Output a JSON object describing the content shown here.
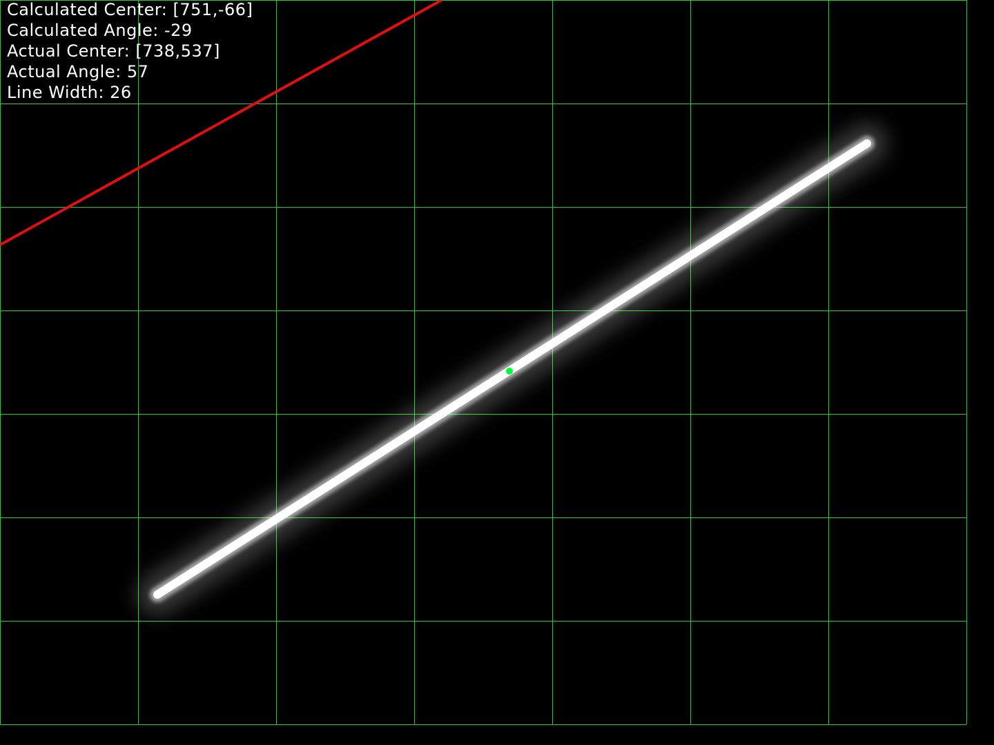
{
  "overlay": {
    "calculated_center_label": "Calculated Center: [751,-66]",
    "calculated_angle_label": "Calculated Angle: -29",
    "actual_center_label": "Actual Center: [738,537]",
    "actual_angle_label": "Actual Angle: 57",
    "line_width_label": "Line Width: 26"
  },
  "measurements": {
    "calculated_center": [
      751,
      -66
    ],
    "calculated_angle": -29,
    "actual_center": [
      738,
      537
    ],
    "actual_angle": 57,
    "line_width": 26
  },
  "colors": {
    "background": "#000000",
    "grid": "#22cc22",
    "calculated_line": "#e01010",
    "center_marker": "#00ff33",
    "detected_line": "#ffffff",
    "text": "#ffffff"
  }
}
